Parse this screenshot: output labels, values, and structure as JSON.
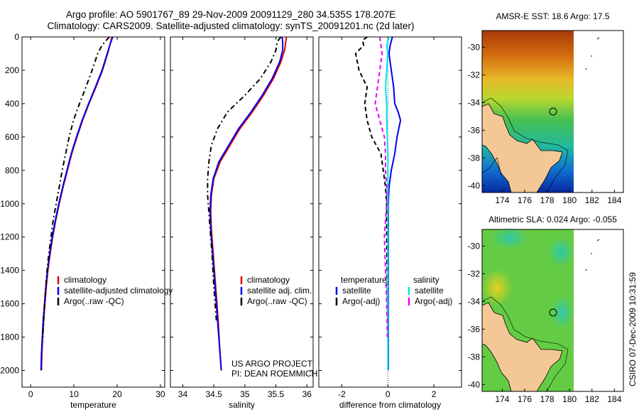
{
  "header": {
    "line1": "Argo profile: AO 5901767_89 29-Nov-2009 20091129_280 34.535S 178.207E",
    "line2": "Climatology: CARS2009. Satellite-adjusted climatology: synTS_20091201.nc (2d later)"
  },
  "credits": {
    "line1": "US ARGO PROJECT",
    "line2": "PI: DEAN ROEMMICH"
  },
  "stamp": "CSIRO 07-Dec-2009 10:31:59",
  "colors": {
    "clim": "#dd0000",
    "sat": "#0000ee",
    "argo": "#000000",
    "sal_sat": "#00e5e5",
    "sal_argo": "#ee00ee"
  },
  "chart_data": [
    {
      "type": "line",
      "xlabel": "temperature",
      "ylabel": "",
      "xlim": [
        -2,
        31
      ],
      "ylim": [
        2100,
        0
      ],
      "xticks": [
        "0",
        "10",
        "20",
        "30"
      ],
      "yticks": [
        "0",
        "200",
        "400",
        "600",
        "800",
        "1000",
        "1200",
        "1400",
        "1600",
        "1800",
        "2000"
      ],
      "legend": {
        "position": "lower-right",
        "entries": [
          "climatology",
          "satellite-adjusted climatology",
          "Argo(..raw -QC)"
        ]
      },
      "series": [
        {
          "name": "climatology",
          "color": "#dd0000",
          "dash": "",
          "points": [
            [
              18.8,
              0
            ],
            [
              18.6,
              20
            ],
            [
              18.3,
              50
            ],
            [
              17.8,
              100
            ],
            [
              16.6,
              200
            ],
            [
              15.1,
              300
            ],
            [
              13.5,
              400
            ],
            [
              12,
              500
            ],
            [
              10.7,
              600
            ],
            [
              9.5,
              700
            ],
            [
              8.5,
              800
            ],
            [
              7.5,
              900
            ],
            [
              6.6,
              1000
            ],
            [
              5.8,
              1100
            ],
            [
              5.1,
              1200
            ],
            [
              4.5,
              1300
            ],
            [
              4,
              1400
            ],
            [
              3.6,
              1500
            ],
            [
              3.3,
              1600
            ],
            [
              3,
              1700
            ],
            [
              2.8,
              1800
            ],
            [
              2.6,
              1900
            ],
            [
              2.5,
              2000
            ]
          ]
        },
        {
          "name": "satellite-adjusted climatology",
          "color": "#0000ee",
          "dash": "",
          "points": [
            [
              19,
              0
            ],
            [
              18.7,
              20
            ],
            [
              18.3,
              50
            ],
            [
              17.7,
              100
            ],
            [
              16.5,
              200
            ],
            [
              15,
              300
            ],
            [
              13.4,
              400
            ],
            [
              11.9,
              500
            ],
            [
              10.6,
              600
            ],
            [
              9.4,
              700
            ],
            [
              8.4,
              800
            ],
            [
              7.4,
              900
            ],
            [
              6.5,
              1000
            ],
            [
              5.7,
              1100
            ],
            [
              5,
              1200
            ],
            [
              4.4,
              1300
            ],
            [
              3.9,
              1400
            ],
            [
              3.5,
              1500
            ],
            [
              3.2,
              1600
            ],
            [
              2.9,
              1700
            ],
            [
              2.7,
              1800
            ],
            [
              2.5,
              1900
            ],
            [
              2.4,
              2000
            ]
          ]
        },
        {
          "name": "Argo(..raw -QC)",
          "color": "#000000",
          "dash": "7,4,2,4",
          "points": [
            [
              18.2,
              0
            ],
            [
              17.5,
              20
            ],
            [
              16.5,
              50
            ],
            [
              15.5,
              100
            ],
            [
              14.2,
              200
            ],
            [
              12.8,
              300
            ],
            [
              11.3,
              400
            ],
            [
              9.9,
              500
            ],
            [
              8.9,
              600
            ],
            [
              8.1,
              700
            ],
            [
              7.3,
              800
            ],
            [
              6.6,
              900
            ],
            [
              5.9,
              1000
            ],
            [
              5.2,
              1100
            ],
            [
              4.7,
              1200
            ],
            [
              4.2,
              1300
            ],
            [
              3.8,
              1400
            ],
            [
              3.5,
              1500
            ],
            [
              3.2,
              1600
            ],
            [
              3,
              1700
            ],
            [
              2.8,
              1800
            ]
          ]
        }
      ]
    },
    {
      "type": "line",
      "xlabel": "salinity",
      "ylabel": "",
      "xlim": [
        33.8,
        36.1
      ],
      "ylim": [
        2100,
        0
      ],
      "xticks": [
        "34",
        "34.5",
        "35",
        "35.5",
        "36"
      ],
      "legend": {
        "position": "lower-right",
        "entries": [
          "climatology",
          "satellite adj. clim.",
          "Argo(..raw -QC)"
        ]
      },
      "series": [
        {
          "name": "climatology",
          "color": "#dd0000",
          "dash": "",
          "points": [
            [
              35.67,
              0
            ],
            [
              35.66,
              30
            ],
            [
              35.64,
              80
            ],
            [
              35.58,
              150
            ],
            [
              35.46,
              250
            ],
            [
              35.3,
              350
            ],
            [
              35.12,
              450
            ],
            [
              34.92,
              550
            ],
            [
              34.76,
              650
            ],
            [
              34.6,
              750
            ],
            [
              34.5,
              850
            ],
            [
              34.46,
              950
            ],
            [
              34.45,
              1050
            ],
            [
              34.46,
              1150
            ],
            [
              34.49,
              1300
            ],
            [
              34.53,
              1500
            ],
            [
              34.57,
              1700
            ],
            [
              34.6,
              1900
            ],
            [
              34.62,
              2000
            ]
          ]
        },
        {
          "name": "satellite adj. clim.",
          "color": "#0000ee",
          "dash": "",
          "points": [
            [
              35.6,
              0
            ],
            [
              35.61,
              30
            ],
            [
              35.61,
              80
            ],
            [
              35.56,
              150
            ],
            [
              35.44,
              250
            ],
            [
              35.28,
              350
            ],
            [
              35.1,
              450
            ],
            [
              34.9,
              550
            ],
            [
              34.74,
              650
            ],
            [
              34.58,
              750
            ],
            [
              34.49,
              850
            ],
            [
              34.45,
              950
            ],
            [
              34.44,
              1050
            ],
            [
              34.45,
              1150
            ],
            [
              34.48,
              1300
            ],
            [
              34.52,
              1500
            ],
            [
              34.56,
              1700
            ],
            [
              34.6,
              1900
            ],
            [
              34.62,
              2000
            ]
          ]
        },
        {
          "name": "Argo(..raw -QC)",
          "color": "#000000",
          "dash": "7,4,2,4",
          "points": [
            [
              35.58,
              0
            ],
            [
              35.52,
              30
            ],
            [
              35.5,
              80
            ],
            [
              35.42,
              150
            ],
            [
              35.25,
              250
            ],
            [
              35.0,
              350
            ],
            [
              34.72,
              450
            ],
            [
              34.56,
              550
            ],
            [
              34.46,
              650
            ],
            [
              34.42,
              750
            ],
            [
              34.4,
              850
            ],
            [
              34.4,
              950
            ],
            [
              34.42,
              1050
            ],
            [
              34.44,
              1150
            ],
            [
              34.47,
              1300
            ],
            [
              34.5,
              1500
            ],
            [
              34.54,
              1700
            ]
          ]
        }
      ]
    },
    {
      "type": "line",
      "xlabel": "difference from climatology",
      "ylabel": "",
      "xlim": [
        -3,
        3.2
      ],
      "ylim": [
        2100,
        0
      ],
      "xticks": [
        "-2",
        "0",
        "2"
      ],
      "legend": {
        "position": "lower-center",
        "entries": [
          "temperature",
          "satellite",
          "Argo(-adj)",
          "salinity",
          "satellite",
          "Argo(-adj)"
        ]
      },
      "series": [
        {
          "name": "temperature satellite",
          "color": "#0000ee",
          "dash": "",
          "points": [
            [
              0.2,
              0
            ],
            [
              0.1,
              50
            ],
            [
              0.05,
              100
            ],
            [
              0.15,
              200
            ],
            [
              0.25,
              300
            ],
            [
              0.3,
              400
            ],
            [
              0.45,
              450
            ],
            [
              0.55,
              500
            ],
            [
              0.4,
              600
            ],
            [
              0.3,
              700
            ],
            [
              0.15,
              800
            ],
            [
              0.05,
              900
            ],
            [
              0.02,
              1000
            ],
            [
              0.02,
              1200
            ],
            [
              0.02,
              1500
            ],
            [
              0.02,
              1800
            ],
            [
              0.02,
              2000
            ]
          ]
        },
        {
          "name": "temperature Argo(-adj)",
          "color": "#000000",
          "dash": "6,4",
          "points": [
            [
              -0.9,
              0
            ],
            [
              -1.1,
              20
            ],
            [
              -1.05,
              50
            ],
            [
              -1.4,
              100
            ],
            [
              -1.25,
              200
            ],
            [
              -0.9,
              300
            ],
            [
              -1.0,
              400
            ],
            [
              -0.9,
              500
            ],
            [
              -0.7,
              600
            ],
            [
              -0.3,
              700
            ],
            [
              -0.2,
              800
            ],
            [
              -0.1,
              900
            ],
            [
              -0.05,
              1000
            ],
            [
              -0.05,
              1200
            ],
            [
              -0.02,
              1500
            ],
            [
              0,
              1800
            ]
          ]
        },
        {
          "name": "salinity satellite",
          "color": "#00e5e5",
          "dash": "",
          "points": [
            [
              0.05,
              0
            ],
            [
              -0.05,
              50
            ],
            [
              0,
              100
            ],
            [
              -0.05,
              200
            ],
            [
              -0.1,
              300
            ],
            [
              -0.05,
              400
            ],
            [
              -0.05,
              500
            ],
            [
              0,
              700
            ],
            [
              0,
              1000
            ],
            [
              0,
              1500
            ],
            [
              0,
              2000
            ]
          ]
        },
        {
          "name": "salinity Argo(-adj)",
          "color": "#ee00ee",
          "dash": "6,4",
          "points": [
            [
              -0.35,
              0
            ],
            [
              -0.3,
              50
            ],
            [
              -0.25,
              100
            ],
            [
              -0.35,
              200
            ],
            [
              -0.45,
              300
            ],
            [
              -0.55,
              400
            ],
            [
              -0.35,
              500
            ],
            [
              -0.15,
              600
            ],
            [
              -0.1,
              700
            ],
            [
              -0.1,
              800
            ],
            [
              -0.05,
              900
            ],
            [
              -0.05,
              1000
            ],
            [
              -0.1,
              1100
            ],
            [
              -0.15,
              1200
            ],
            [
              -0.1,
              1400
            ],
            [
              -0.05,
              1600
            ],
            [
              -0.02,
              1800
            ]
          ]
        }
      ]
    },
    {
      "type": "heatmap",
      "title": "AMSR-E SST: 18.6 Argo: 17.5",
      "xlim": [
        172.2,
        184.8
      ],
      "ylim": [
        -40.5,
        -28.8
      ],
      "xticks": [
        "174",
        "176",
        "178",
        "180",
        "182",
        "184"
      ],
      "yticks": [
        "-30",
        "-32",
        "-34",
        "-36",
        "-38",
        "-40"
      ],
      "profile_position": {
        "lon": 178.207,
        "lat": -34.535
      }
    },
    {
      "type": "heatmap",
      "title": "Altimetric SLA: 0.024 Argo: -0.055",
      "xlim": [
        172.2,
        184.8
      ],
      "ylim": [
        -40.5,
        -28.8
      ],
      "xticks": [
        "174",
        "176",
        "178",
        "180",
        "182",
        "184"
      ],
      "yticks": [
        "-30",
        "-32",
        "-34",
        "-36",
        "-38",
        "-40"
      ],
      "profile_position": {
        "lon": 178.207,
        "lat": -34.535
      }
    }
  ]
}
